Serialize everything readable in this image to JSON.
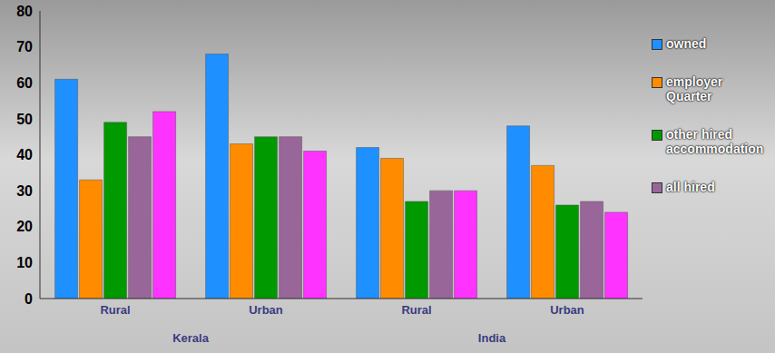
{
  "chart_data": {
    "type": "bar",
    "categories": [
      "Rural",
      "Urban",
      "Rural",
      "Urban"
    ],
    "group_labels": [
      "Kerala",
      "Kerala",
      "India",
      "India"
    ],
    "series": [
      {
        "name": "owned",
        "color": "#1e90ff",
        "values": [
          61,
          68,
          42,
          48
        ]
      },
      {
        "name": "employer Quarter",
        "color": "#ff8c00",
        "values": [
          33,
          43,
          39,
          37
        ]
      },
      {
        "name": "other hired accommodation",
        "color": "#009900",
        "values": [
          49,
          45,
          27,
          26
        ]
      },
      {
        "name": "all hired",
        "color": "#996699",
        "values": [
          45,
          45,
          30,
          27
        ]
      },
      {
        "name": null,
        "color": "#ff33ff",
        "values": [
          52,
          41,
          30,
          24
        ]
      }
    ],
    "ylim": [
      0,
      80
    ],
    "yticks": [
      0,
      10,
      20,
      30,
      40,
      50,
      60,
      70,
      80
    ],
    "grid": false,
    "legend": "right"
  }
}
